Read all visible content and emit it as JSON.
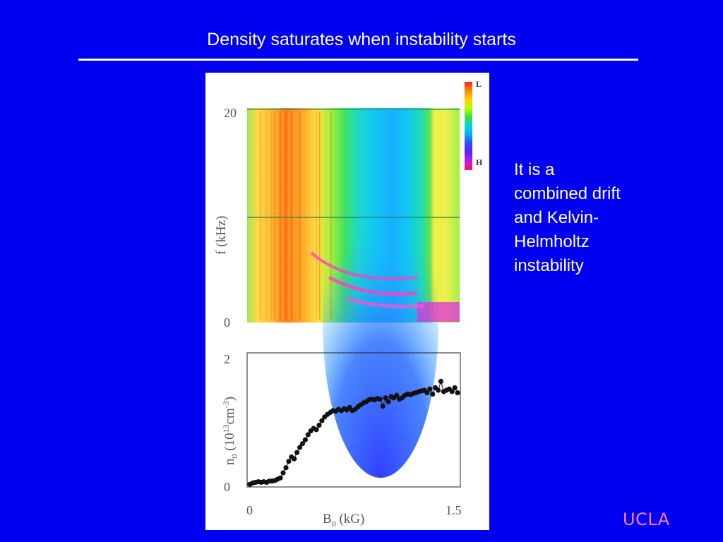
{
  "slide": {
    "title": "Density saturates when instability starts",
    "side_text": [
      "It is a",
      "combined drift",
      "and Kelvin-",
      "Helmholtz",
      "instability"
    ],
    "logo": "UCLA",
    "colors": {
      "background": "#0000f0",
      "text": "#ffffff",
      "logo": "#ff7de0"
    }
  },
  "chart_data": [
    {
      "type": "heatmap",
      "title": "",
      "ylabel": "f (kHz)",
      "xlabel": "",
      "ylim": [
        0,
        20
      ],
      "yticks": [
        "20",
        "0"
      ],
      "colorbar": {
        "top_label": "L",
        "bottom_label": "H",
        "colors": [
          "#ff2020",
          "#ff8a00",
          "#ffd200",
          "#b6ff00",
          "#30e040",
          "#00d8d8",
          "#00a8ff",
          "#2a4dff",
          "#5c20ff",
          "#c020e0",
          "#ff1060"
        ]
      }
    },
    {
      "type": "line",
      "title": "",
      "xlabel": "B0 (kG)",
      "xlabel_base": "B",
      "xlabel_sub": "0",
      "xlabel_unit": " (kG)",
      "ylabel": "n0 (10^13 cm^-3)",
      "ylabel_base": "n",
      "ylabel_sub": "0",
      "ylabel_unit_a": " (10",
      "ylabel_exp": "13",
      "ylabel_unit_b": "cm",
      "ylabel_exp2": "-3",
      "ylabel_close": ")",
      "xlim": [
        0,
        1.5
      ],
      "ylim": [
        0,
        2
      ],
      "xticks": [
        "0",
        "1.5"
      ],
      "yticks": [
        "2",
        "0"
      ],
      "x": [
        0.0,
        0.02,
        0.04,
        0.06,
        0.08,
        0.1,
        0.12,
        0.14,
        0.16,
        0.18,
        0.2,
        0.22,
        0.24,
        0.26,
        0.28,
        0.3,
        0.32,
        0.34,
        0.36,
        0.38,
        0.4,
        0.42,
        0.44,
        0.46,
        0.48,
        0.5,
        0.52,
        0.54,
        0.56,
        0.58,
        0.6,
        0.62,
        0.64,
        0.66,
        0.68,
        0.7,
        0.72,
        0.74,
        0.76,
        0.78,
        0.8,
        0.82,
        0.84,
        0.86,
        0.88,
        0.9,
        0.92,
        0.94,
        0.96,
        0.98,
        1.0,
        1.02,
        1.04,
        1.06,
        1.08,
        1.1,
        1.12,
        1.14,
        1.16,
        1.18,
        1.2,
        1.22,
        1.24,
        1.26,
        1.28,
        1.3,
        1.32,
        1.34,
        1.36,
        1.38,
        1.4,
        1.42,
        1.44,
        1.46,
        1.48,
        1.5
      ],
      "y": [
        0.02,
        0.04,
        0.05,
        0.06,
        0.05,
        0.06,
        0.05,
        0.07,
        0.07,
        0.08,
        0.1,
        0.12,
        0.2,
        0.28,
        0.38,
        0.45,
        0.42,
        0.52,
        0.6,
        0.66,
        0.72,
        0.8,
        0.86,
        0.9,
        0.88,
        0.95,
        1.02,
        1.08,
        1.12,
        1.15,
        1.18,
        1.17,
        1.2,
        1.18,
        1.21,
        1.19,
        1.23,
        1.18,
        1.2,
        1.24,
        1.27,
        1.3,
        1.32,
        1.35,
        1.36,
        1.35,
        1.37,
        1.36,
        1.25,
        1.38,
        1.32,
        1.4,
        1.38,
        1.42,
        1.36,
        1.38,
        1.42,
        1.44,
        1.43,
        1.45,
        1.46,
        1.48,
        1.49,
        1.5,
        1.46,
        1.52,
        1.44,
        1.54,
        1.5,
        1.64,
        1.48,
        1.5,
        1.52,
        1.48,
        1.54,
        1.46
      ]
    }
  ]
}
